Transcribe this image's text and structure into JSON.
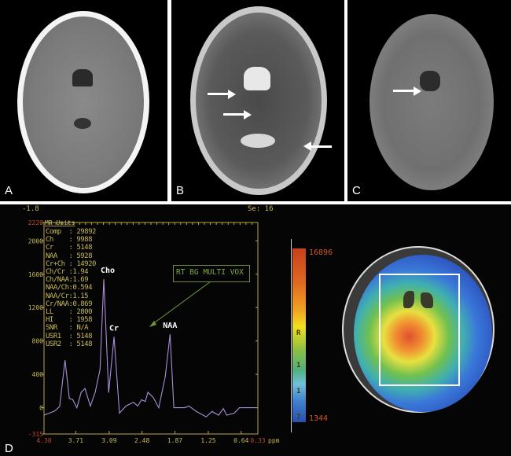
{
  "panels": {
    "a": {
      "label": "A"
    },
    "b": {
      "label": "B"
    },
    "c": {
      "label": "C"
    },
    "d": {
      "label": "D"
    }
  },
  "spectrum": {
    "top_left": "-1.8",
    "top_right": "Se: 16",
    "y_unit": "MR Units",
    "metrics": [
      "Comp  : 29892",
      "Ch    : 9988",
      "Cr    : 5148",
      "NAA   : 5928",
      "Cr+Ch : 14920",
      "Ch/Cr :1.94",
      "Ch/NAA:1.69",
      "NAA/Ch:0.594",
      "NAA/Cr:1.15",
      "Cr/NAA:0.869",
      "LL    : 2800",
      "HI    : 1958",
      "SNR   : N/A",
      "USR1  : 5148",
      "USR2  : 5148"
    ],
    "annotation": "RT BG MULTI VOX",
    "peak_labels": {
      "cho": "Cho",
      "cr": "Cr",
      "naa": "NAA"
    },
    "x_unit": "ppm"
  },
  "colormap": {
    "max_label": "16896",
    "min_label": "1344",
    "side_text": [
      "R",
      "1",
      "1",
      "7"
    ]
  },
  "chart_data": {
    "type": "line",
    "xlabel": "ppm",
    "ylabel": "MR Units",
    "xlim": [
      4.3,
      0.33
    ],
    "ylim": [
      -315,
      2220
    ],
    "x_ticks": [
      "4.30",
      "3.71",
      "3.09",
      "2.48",
      "1.87",
      "1.25",
      "0.64",
      "0.33"
    ],
    "y_ticks": [
      "2220",
      "2000",
      "1600",
      "1200",
      "800",
      "400",
      "0",
      "-315"
    ],
    "grid": false,
    "series": [
      {
        "color": "#a98fd8",
        "points": [
          [
            4.3,
            -90
          ],
          [
            4.1,
            -40
          ],
          [
            4.01,
            15
          ],
          [
            3.91,
            570
          ],
          [
            3.83,
            110
          ],
          [
            3.77,
            100
          ],
          [
            3.69,
            0
          ],
          [
            3.61,
            185
          ],
          [
            3.54,
            230
          ],
          [
            3.44,
            20
          ],
          [
            3.35,
            185
          ],
          [
            3.26,
            460
          ],
          [
            3.19,
            1540
          ],
          [
            3.1,
            180
          ],
          [
            3.0,
            850
          ],
          [
            2.9,
            -65
          ],
          [
            2.78,
            20
          ],
          [
            2.64,
            65
          ],
          [
            2.56,
            20
          ],
          [
            2.49,
            95
          ],
          [
            2.42,
            75
          ],
          [
            2.37,
            185
          ],
          [
            2.27,
            120
          ],
          [
            2.17,
            0
          ],
          [
            2.05,
            370
          ],
          [
            1.96,
            880
          ],
          [
            1.89,
            0
          ],
          [
            1.69,
            0
          ],
          [
            1.61,
            20
          ],
          [
            1.47,
            -45
          ],
          [
            1.29,
            -110
          ],
          [
            1.18,
            -45
          ],
          [
            1.06,
            -90
          ],
          [
            0.97,
            -10
          ],
          [
            0.91,
            -90
          ],
          [
            0.77,
            -65
          ],
          [
            0.67,
            0
          ],
          [
            0.52,
            0
          ],
          [
            0.33,
            0
          ]
        ]
      }
    ]
  }
}
